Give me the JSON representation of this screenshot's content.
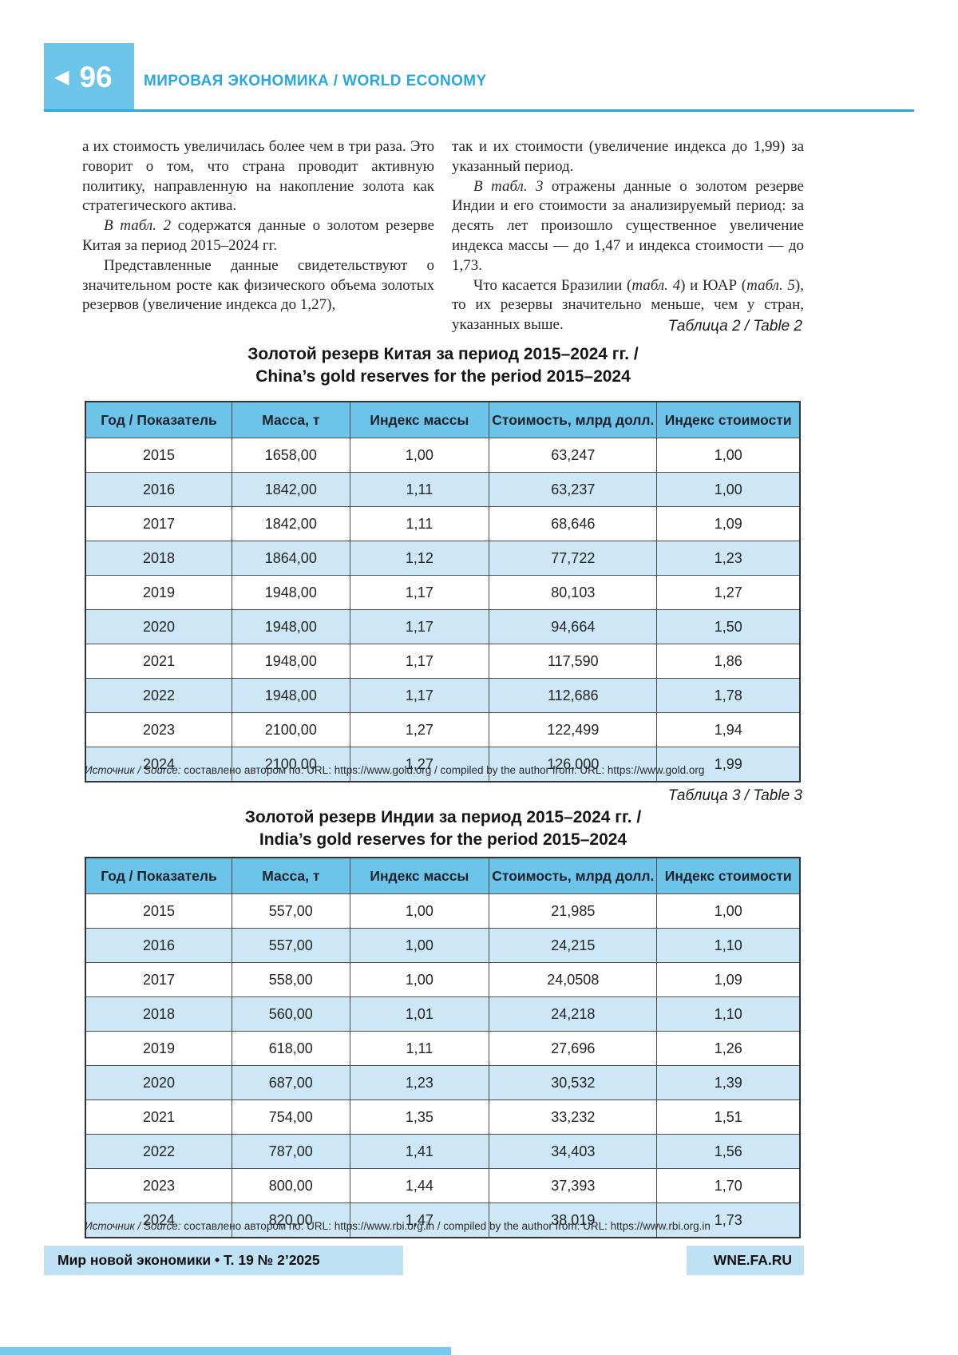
{
  "header": {
    "back_icon": "◀",
    "page_number": "96",
    "section_title": "МИРОВАЯ ЭКОНОМИКА / WORLD ECONOMY"
  },
  "article": {
    "left_column": [
      {
        "indent": false,
        "segments": [
          {
            "text": "а их стоимость увеличилась более чем в три раза. Это говорит о том, что страна проводит активную политику, направленную на накопление золота как стратегического актива."
          }
        ]
      },
      {
        "indent": true,
        "segments": [
          {
            "text": "В табл. 2",
            "italic": true
          },
          {
            "text": " содержатся данные о золотом резерве Китая за период 2015–2024 гг."
          }
        ]
      },
      {
        "indent": true,
        "segments": [
          {
            "text": "Представленные данные свидетельствуют о значительном росте как физического объема золотых резервов (увеличение индекса до 1,27),"
          }
        ]
      }
    ],
    "right_column": [
      {
        "indent": false,
        "segments": [
          {
            "text": "так и их стоимости (увеличение индекса до 1,99) за указанный период."
          }
        ]
      },
      {
        "indent": true,
        "segments": [
          {
            "text": "В табл. 3",
            "italic": true
          },
          {
            "text": " отражены данные о золотом резерве Индии и его стоимости за анализируемый период: за десять лет произошло существенное увеличение индекса массы — до 1,47 и индекса стоимости — до 1,73."
          }
        ]
      },
      {
        "indent": true,
        "segments": [
          {
            "text": "Что касается Бразилии ("
          },
          {
            "text": "табл. 4",
            "italic": true
          },
          {
            "text": ") и ЮАР ("
          },
          {
            "text": "табл. 5",
            "italic": true
          },
          {
            "text": "), то их резервы значительно меньше, чем у стран, указанных выше."
          }
        ]
      }
    ]
  },
  "tables": [
    {
      "caption": "Таблица 2 / Table 2",
      "title_ru": "Золотой резерв Китая за период 2015–2024 гг. /",
      "title_en": "China’s gold reserves for the period 2015–2024",
      "columns": [
        "Год / Показатель",
        "Масса, т",
        "Индекс массы",
        "Стоимость, млрд долл.",
        "Индекс стоимости"
      ],
      "rows": [
        [
          "2015",
          "1658,00",
          "1,00",
          "63,247",
          "1,00"
        ],
        [
          "2016",
          "1842,00",
          "1,11",
          "63,237",
          "1,00"
        ],
        [
          "2017",
          "1842,00",
          "1,11",
          "68,646",
          "1,09"
        ],
        [
          "2018",
          "1864,00",
          "1,12",
          "77,722",
          "1,23"
        ],
        [
          "2019",
          "1948,00",
          "1,17",
          "80,103",
          "1,27"
        ],
        [
          "2020",
          "1948,00",
          "1,17",
          "94,664",
          "1,50"
        ],
        [
          "2021",
          "1948,00",
          "1,17",
          "117,590",
          "1,86"
        ],
        [
          "2022",
          "1948,00",
          "1,17",
          "112,686",
          "1,78"
        ],
        [
          "2023",
          "2100,00",
          "1,27",
          "122,499",
          "1,94"
        ],
        [
          "2024",
          "2100,00",
          "1,27",
          "126,000",
          "1,99"
        ]
      ],
      "source_label": "Источник / Source:",
      "source_text": " составлено автором по: URL: https://www.gold.org / compiled by the author from: URL: https://www.gold.org"
    },
    {
      "caption": "Таблица 3 / Table 3",
      "title_ru": "Золотой резерв Индии за период 2015–2024 гг. /",
      "title_en": "India’s gold reserves for the period 2015–2024",
      "columns": [
        "Год / Показатель",
        "Масса, т",
        "Индекс массы",
        "Стоимость, млрд долл.",
        "Индекс стоимости"
      ],
      "rows": [
        [
          "2015",
          "557,00",
          "1,00",
          "21,985",
          "1,00"
        ],
        [
          "2016",
          "557,00",
          "1,00",
          "24,215",
          "1,10"
        ],
        [
          "2017",
          "558,00",
          "1,00",
          "24,0508",
          "1,09"
        ],
        [
          "2018",
          "560,00",
          "1,01",
          "24,218",
          "1,10"
        ],
        [
          "2019",
          "618,00",
          "1,11",
          "27,696",
          "1,26"
        ],
        [
          "2020",
          "687,00",
          "1,23",
          "30,532",
          "1,39"
        ],
        [
          "2021",
          "754,00",
          "1,35",
          "33,232",
          "1,51"
        ],
        [
          "2022",
          "787,00",
          "1,41",
          "34,403",
          "1,56"
        ],
        [
          "2023",
          "800,00",
          "1,44",
          "37,393",
          "1,70"
        ],
        [
          "2024",
          "820,00",
          "1,47",
          "38,019",
          "1,73"
        ]
      ],
      "source_label": "Источник / Source:",
      "source_text": " составлено автором по: URL: https://www.rbi.org.in / compiled by the author from: URL: https://www.rbi.org.in"
    }
  ],
  "footer": {
    "journal_line": "Мир новой экономики • Т. 19 № 2’2025",
    "website": "WNE.FA.RU"
  },
  "colors": {
    "accent_blue": "#29A8DF",
    "header_fill": "#6CC4E9",
    "row_alt_fill": "#CDE7F7",
    "footer_fill": "#BFE1F4"
  }
}
